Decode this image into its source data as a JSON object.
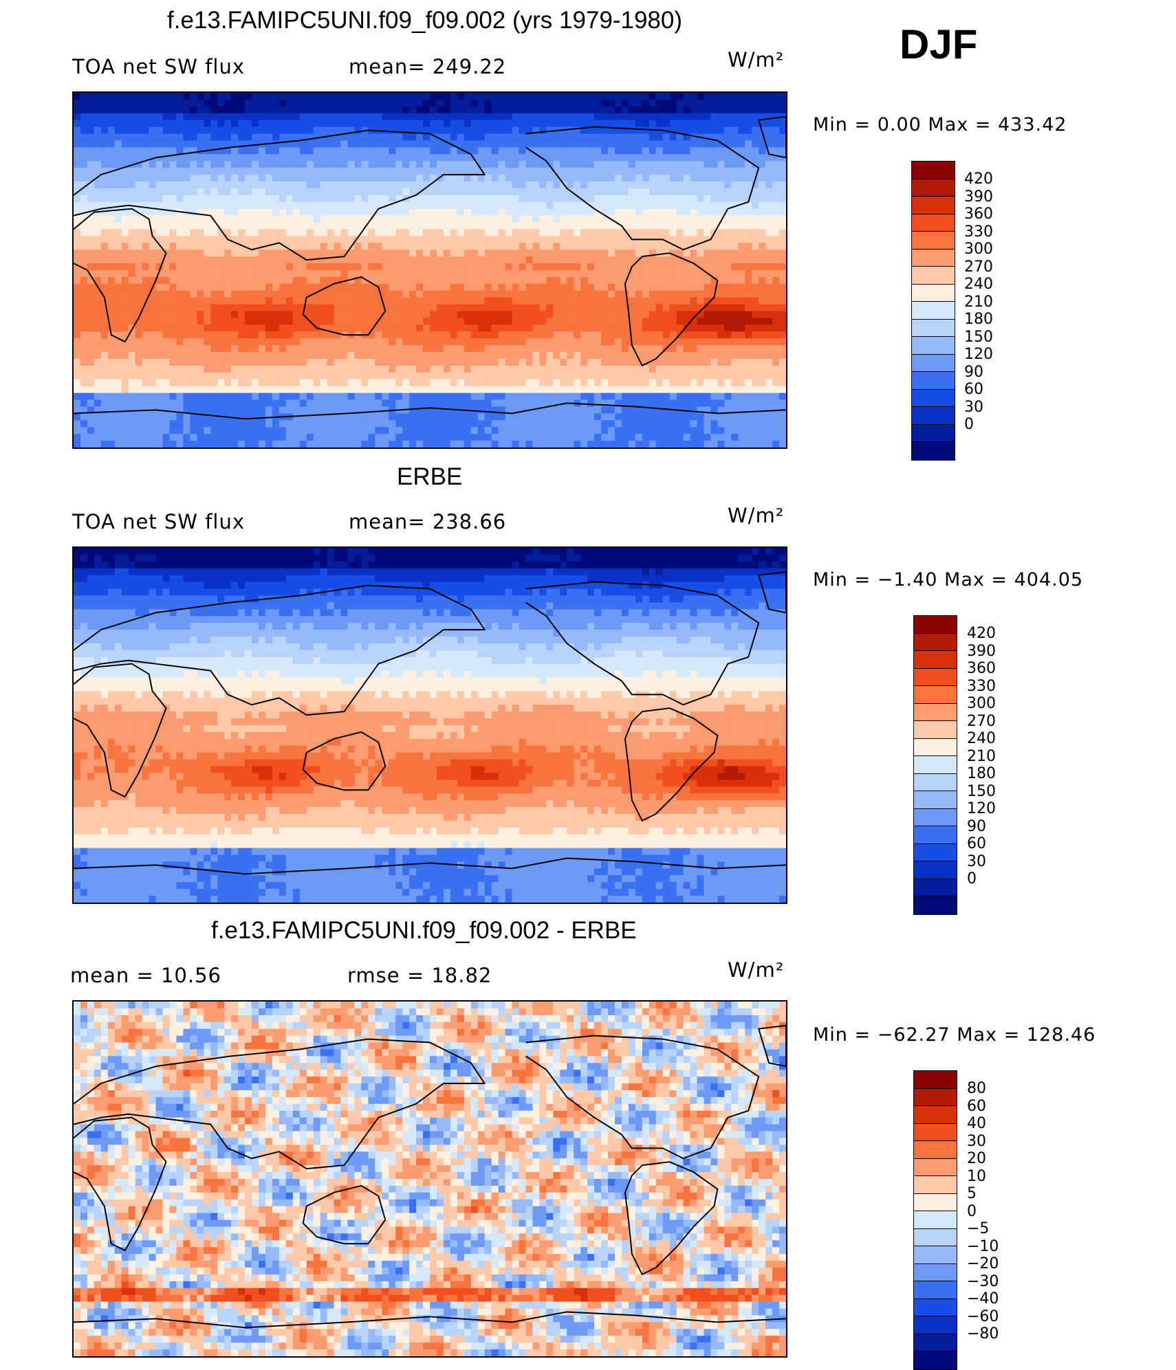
{
  "season": "DJF",
  "units_label": "W/m²",
  "panels": [
    {
      "title": "f.e13.FAMIPC5UNI.f09_f09.002 (yrs 1979-1980)",
      "left_label": "TOA net SW flux",
      "stat_label": "mean=  249.22",
      "units": "W/m²",
      "minmax": "Min  =    0.00  Max  =  433.42",
      "field": "model",
      "colorbar": {
        "colors": [
          "#8b0000",
          "#b11a05",
          "#d9300c",
          "#f24f1f",
          "#f9733f",
          "#fb9b6f",
          "#fdc9a8",
          "#fff0e1",
          "#d6e9fb",
          "#b8d3fa",
          "#95b9fa",
          "#6d99f7",
          "#3a70f3",
          "#174fe6",
          "#0a31c5",
          "#031d9b",
          "#010a78"
        ],
        "labels": [
          "420",
          "390",
          "360",
          "330",
          "300",
          "270",
          "240",
          "210",
          "180",
          "150",
          "120",
          "90",
          "60",
          "30",
          "0"
        ]
      }
    },
    {
      "title": "ERBE",
      "left_label": "TOA net SW flux",
      "stat_label": "mean=  238.66",
      "units": "W/m²",
      "minmax": "Min  =   −1.40  Max  =  404.05",
      "field": "obs",
      "colorbar": {
        "colors": [
          "#8b0000",
          "#b11a05",
          "#d9300c",
          "#f24f1f",
          "#f9733f",
          "#fb9b6f",
          "#fdc9a8",
          "#fff0e1",
          "#d6e9fb",
          "#b8d3fa",
          "#95b9fa",
          "#6d99f7",
          "#3a70f3",
          "#174fe6",
          "#0a31c5",
          "#031d9b",
          "#010a78"
        ],
        "labels": [
          "420",
          "390",
          "360",
          "330",
          "300",
          "270",
          "240",
          "210",
          "180",
          "150",
          "120",
          "90",
          "60",
          "30",
          "0"
        ]
      }
    },
    {
      "title": "f.e13.FAMIPC5UNI.f09_f09.002 - ERBE",
      "left_label": "mean  =    10.56",
      "stat_label": "rmse  =    18.82",
      "units": "W/m²",
      "minmax": "Min  = −62.27  Max  =  128.46",
      "field": "diff",
      "colorbar": {
        "colors": [
          "#8b0000",
          "#b11a05",
          "#d9300c",
          "#f24f1f",
          "#f9733f",
          "#fb9b6f",
          "#fdc9a8",
          "#fff0e1",
          "#d6e9fb",
          "#b8d3fa",
          "#95b9fa",
          "#6d99f7",
          "#3a70f3",
          "#174fe6",
          "#0a31c5",
          "#031d9b",
          "#010a78"
        ],
        "labels": [
          "80",
          "60",
          "40",
          "30",
          "20",
          "10",
          "5",
          "0",
          "−5",
          "−10",
          "−20",
          "−30",
          "−40",
          "−60",
          "−80"
        ]
      }
    }
  ]
}
